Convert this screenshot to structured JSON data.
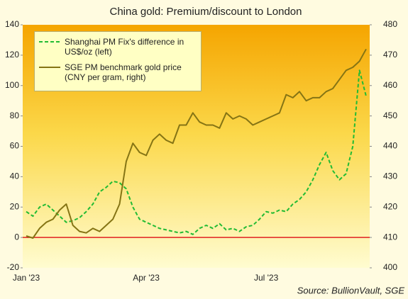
{
  "chart_data": {
    "type": "line",
    "title": "China gold: Premium/discount to London",
    "source": "Source: BullionVault, SGE",
    "categories": [
      "Jan '23",
      null,
      null,
      null,
      null,
      null,
      null,
      null,
      null,
      null,
      null,
      null,
      null,
      null,
      null,
      null,
      null,
      null,
      "Apr '23",
      null,
      null,
      null,
      null,
      null,
      null,
      null,
      null,
      null,
      null,
      null,
      null,
      null,
      null,
      null,
      null,
      null,
      "Jul '23",
      null,
      null,
      null,
      null,
      null,
      null,
      null,
      null,
      null,
      null,
      null,
      null,
      null,
      null,
      null
    ],
    "series": [
      {
        "name": "Shanghai PM Fix's difference in US$/oz (left)",
        "color": "#22bb33",
        "dash": true,
        "axis": "y",
        "values": [
          17,
          14,
          20,
          22,
          18,
          14,
          10,
          11,
          13,
          17,
          22,
          30,
          33,
          37,
          36,
          32,
          20,
          12,
          10,
          8,
          6,
          5,
          4,
          3,
          4,
          2,
          6,
          8,
          6,
          9,
          5,
          6,
          4,
          7,
          8,
          12,
          17,
          16,
          18,
          17,
          22,
          25,
          30,
          38,
          48,
          56,
          44,
          38,
          42,
          60,
          110,
          93
        ]
      },
      {
        "name": "SGE PM benchmark gold price (CNY per gram, right)",
        "color": "#857414",
        "dash": false,
        "axis": "y2",
        "values": [
          410.5,
          409.8,
          413,
          415,
          416,
          419,
          421,
          414,
          412,
          411.5,
          413,
          412,
          414,
          416,
          421,
          435,
          441,
          438,
          437,
          442,
          444,
          442,
          441,
          447,
          447,
          451,
          448,
          447,
          447,
          446,
          451,
          449,
          450,
          449,
          447,
          448,
          449,
          450,
          451,
          457,
          456,
          458,
          455,
          456,
          456,
          458,
          459,
          462,
          465,
          466,
          468,
          472
        ]
      }
    ],
    "ylim": [
      -20,
      140
    ],
    "yticks": [
      -20,
      0,
      20,
      40,
      60,
      80,
      100,
      120,
      140
    ],
    "y2lim": [
      400,
      480
    ],
    "y2ticks": [
      400,
      410,
      420,
      430,
      440,
      450,
      460,
      470,
      480
    ],
    "reference_line": {
      "value": 0,
      "color": "#e02020"
    },
    "legend": "top-left"
  }
}
